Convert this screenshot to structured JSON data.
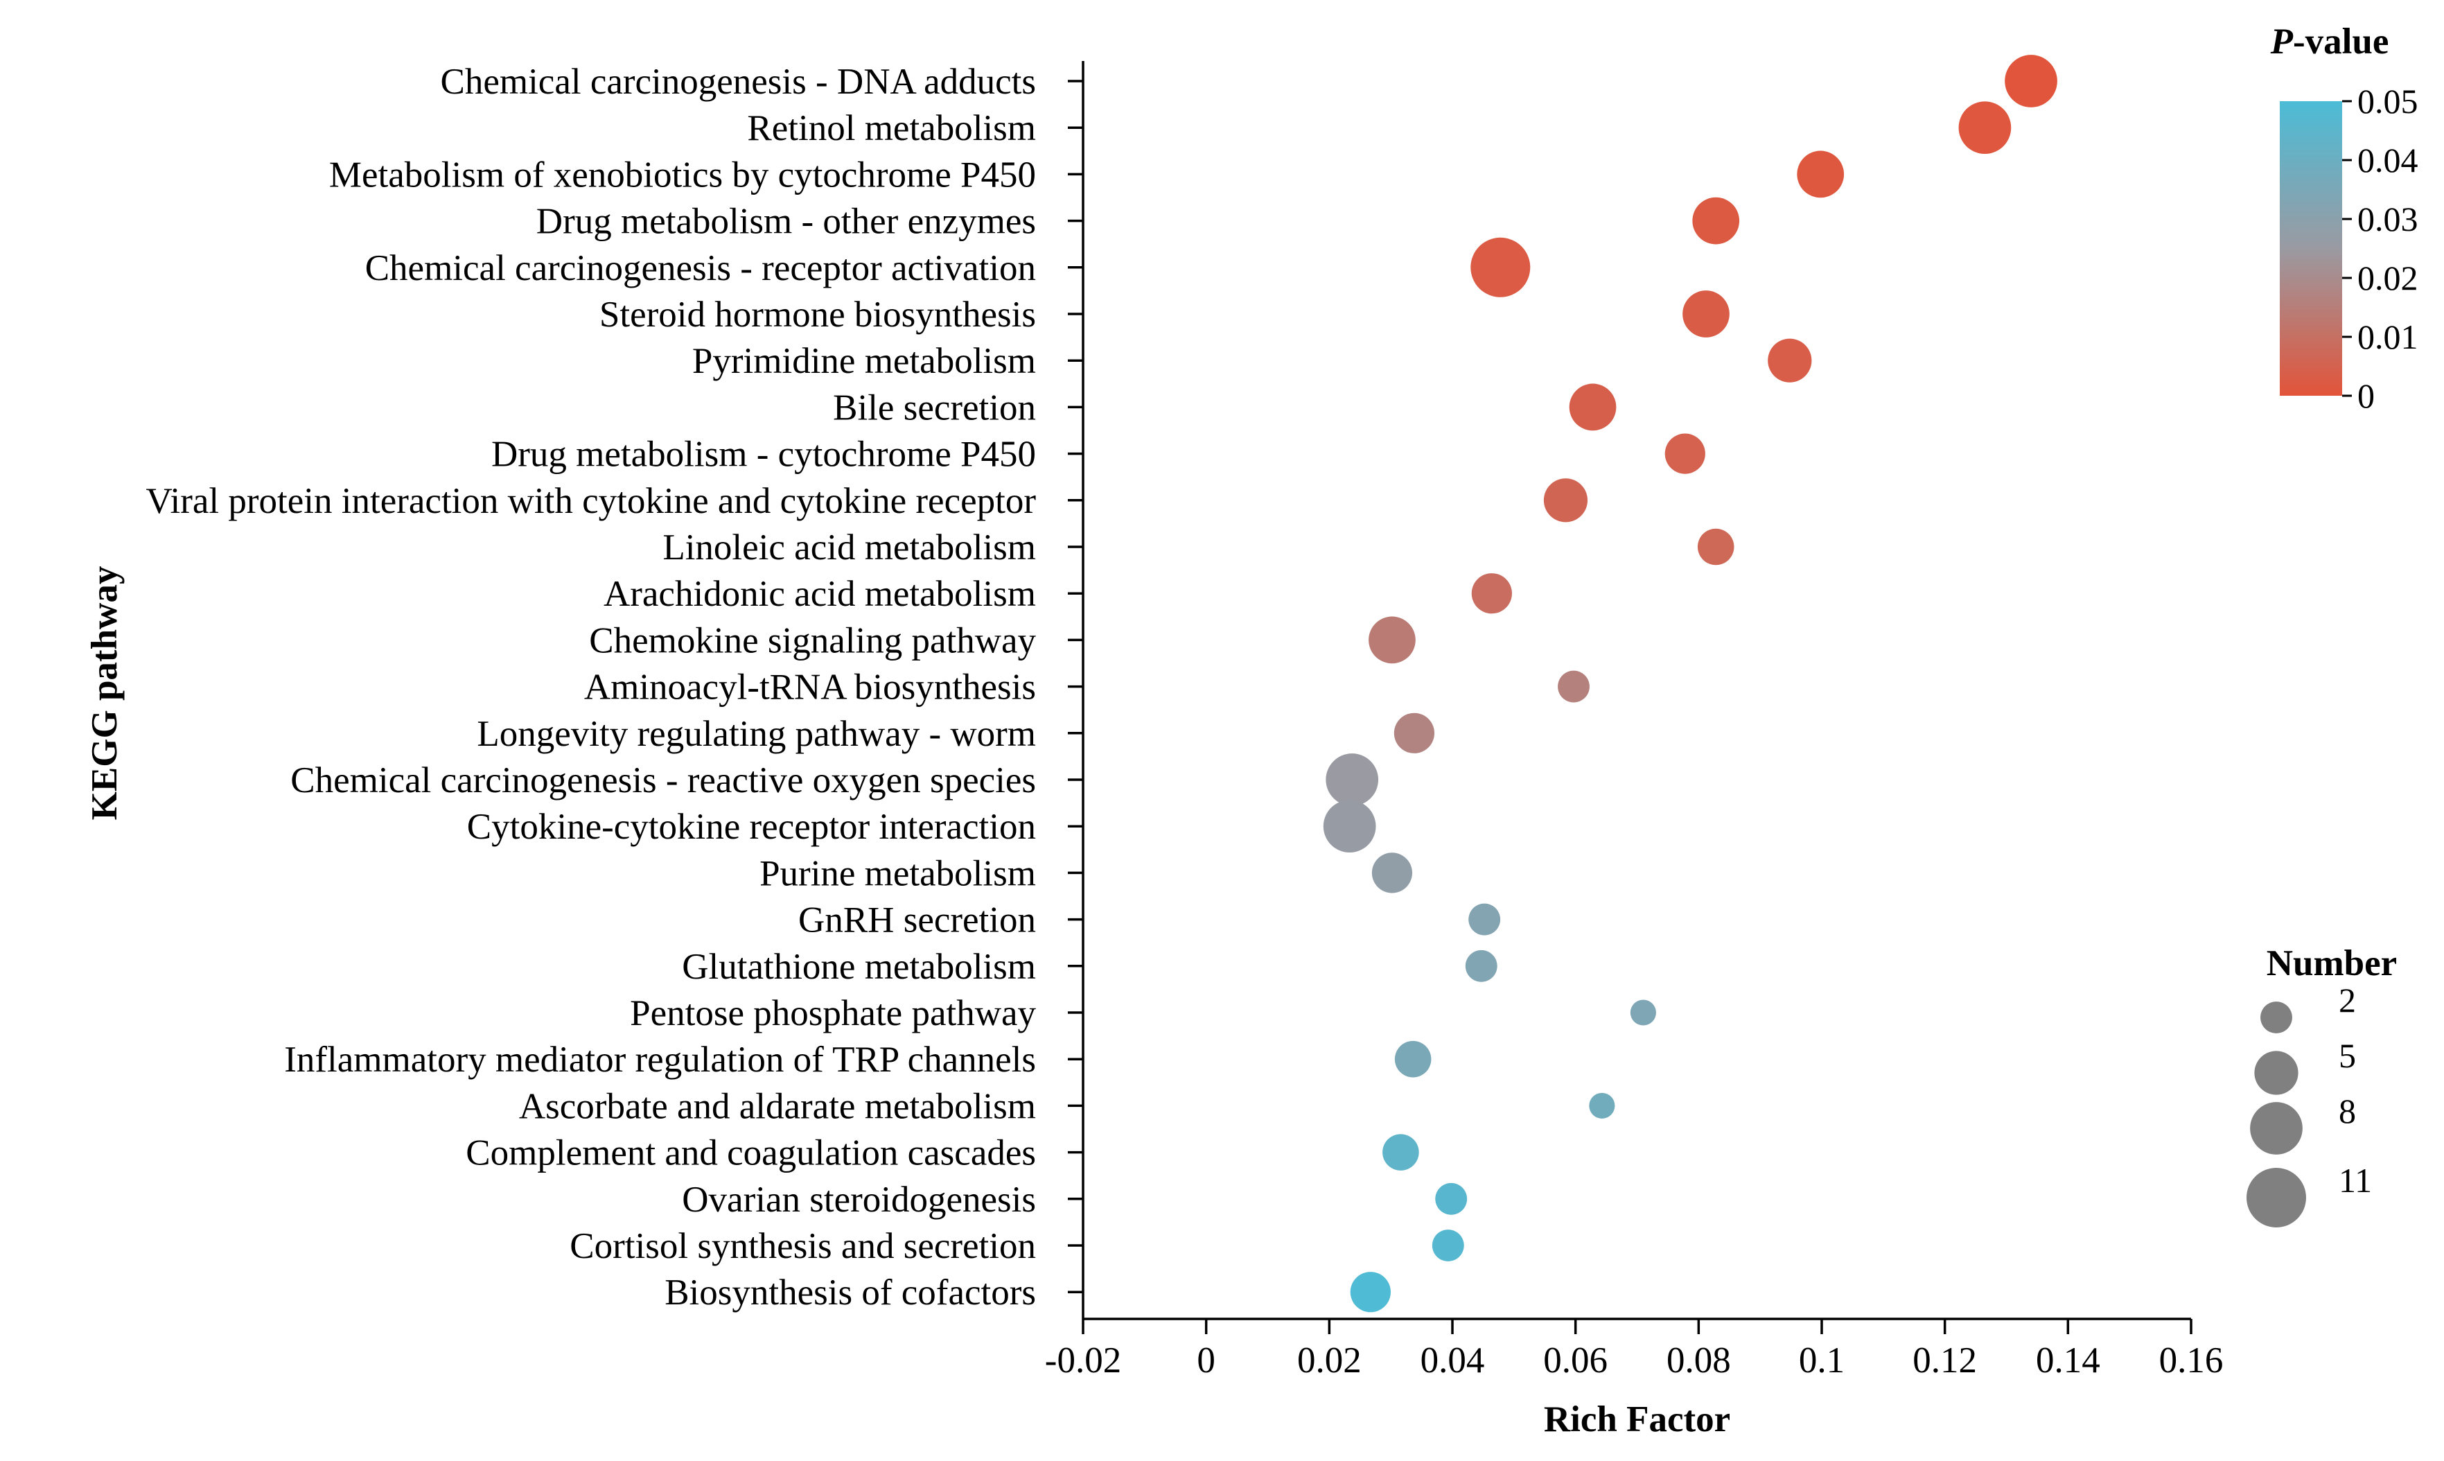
{
  "chart_data": {
    "type": "scatter",
    "title": "",
    "xlabel": "Rich Factor",
    "ylabel": "KEGG pathway",
    "xlim": [
      -0.02,
      0.16
    ],
    "xticks": [
      -0.02,
      0,
      0.02,
      0.04,
      0.06,
      0.08,
      0.1,
      0.12,
      0.14,
      0.16
    ],
    "xtick_labels": [
      "-0.02",
      "0",
      "0.02",
      "0.04",
      "0.06",
      "0.08",
      "0.1",
      "0.12",
      "0.14",
      "0.16"
    ],
    "grid": false,
    "points": [
      {
        "pathway": "Chemical carcinogenesis - DNA adducts",
        "rich_factor": 0.134,
        "pvalue": 0.0005,
        "number": 8
      },
      {
        "pathway": "Retinol metabolism",
        "rich_factor": 0.1265,
        "pvalue": 0.001,
        "number": 8
      },
      {
        "pathway": "Metabolism of xenobiotics by cytochrome P450",
        "rich_factor": 0.0998,
        "pvalue": 0.0015,
        "number": 6
      },
      {
        "pathway": "Drug metabolism - other enzymes",
        "rich_factor": 0.0828,
        "pvalue": 0.002,
        "number": 6
      },
      {
        "pathway": "Chemical carcinogenesis - receptor activation",
        "rich_factor": 0.0478,
        "pvalue": 0.0025,
        "number": 11
      },
      {
        "pathway": "Steroid hormone biosynthesis",
        "rich_factor": 0.0812,
        "pvalue": 0.003,
        "number": 6
      },
      {
        "pathway": "Pyrimidine metabolism",
        "rich_factor": 0.0948,
        "pvalue": 0.0035,
        "number": 5
      },
      {
        "pathway": "Bile secretion",
        "rich_factor": 0.0628,
        "pvalue": 0.004,
        "number": 6
      },
      {
        "pathway": "Drug metabolism - cytochrome P450",
        "rich_factor": 0.0778,
        "pvalue": 0.005,
        "number": 4
      },
      {
        "pathway": "Viral protein interaction with cytokine and cytokine receptor",
        "rich_factor": 0.0584,
        "pvalue": 0.006,
        "number": 5
      },
      {
        "pathway": "Linoleic acid metabolism",
        "rich_factor": 0.0828,
        "pvalue": 0.007,
        "number": 3
      },
      {
        "pathway": "Arachidonic acid metabolism",
        "rich_factor": 0.0464,
        "pvalue": 0.009,
        "number": 4
      },
      {
        "pathway": "Chemokine signaling pathway",
        "rich_factor": 0.0302,
        "pvalue": 0.014,
        "number": 6
      },
      {
        "pathway": "Aminoacyl-tRNA biosynthesis",
        "rich_factor": 0.0597,
        "pvalue": 0.016,
        "number": 2
      },
      {
        "pathway": "Longevity regulating pathway - worm",
        "rich_factor": 0.0338,
        "pvalue": 0.017,
        "number": 4
      },
      {
        "pathway": "Chemical carcinogenesis - reactive oxygen species",
        "rich_factor": 0.0237,
        "pvalue": 0.025,
        "number": 8
      },
      {
        "pathway": "Cytokine-cytokine receptor interaction",
        "rich_factor": 0.0233,
        "pvalue": 0.026,
        "number": 8
      },
      {
        "pathway": "Purine metabolism",
        "rich_factor": 0.0302,
        "pvalue": 0.028,
        "number": 4
      },
      {
        "pathway": "GnRH secretion",
        "rich_factor": 0.0452,
        "pvalue": 0.032,
        "number": 2
      },
      {
        "pathway": "Glutathione metabolism",
        "rich_factor": 0.0447,
        "pvalue": 0.033,
        "number": 2
      },
      {
        "pathway": "Pentose phosphate pathway",
        "rich_factor": 0.071,
        "pvalue": 0.034,
        "number": 1
      },
      {
        "pathway": "Inflammatory mediator regulation of TRP channels",
        "rich_factor": 0.0336,
        "pvalue": 0.035,
        "number": 3
      },
      {
        "pathway": "Ascorbate and aldarate metabolism",
        "rich_factor": 0.0643,
        "pvalue": 0.038,
        "number": 1
      },
      {
        "pathway": "Complement and coagulation cascades",
        "rich_factor": 0.0316,
        "pvalue": 0.044,
        "number": 3
      },
      {
        "pathway": "Ovarian steroidogenesis",
        "rich_factor": 0.0398,
        "pvalue": 0.046,
        "number": 2
      },
      {
        "pathway": "Cortisol synthesis and secretion",
        "rich_factor": 0.0393,
        "pvalue": 0.047,
        "number": 2
      },
      {
        "pathway": "Biosynthesis of cofactors",
        "rich_factor": 0.0267,
        "pvalue": 0.049,
        "number": 4
      }
    ],
    "color_legend": {
      "title_italic": "P",
      "title_rest": "-value",
      "min": 0,
      "max": 0.05,
      "ticks": [
        0.05,
        0.04,
        0.03,
        0.02,
        0.01,
        0
      ],
      "tick_labels": [
        "0.05",
        "0.04",
        "0.03",
        "0.02",
        "0.01",
        "0"
      ],
      "color_low": "#e2543a",
      "color_mid": "#9a9aa2",
      "color_high": "#4cbcd6"
    },
    "size_legend": {
      "title": "Number",
      "values": [
        2,
        5,
        8,
        11
      ],
      "labels": [
        "2",
        "5",
        "8",
        "11"
      ],
      "color": "#808080"
    }
  }
}
